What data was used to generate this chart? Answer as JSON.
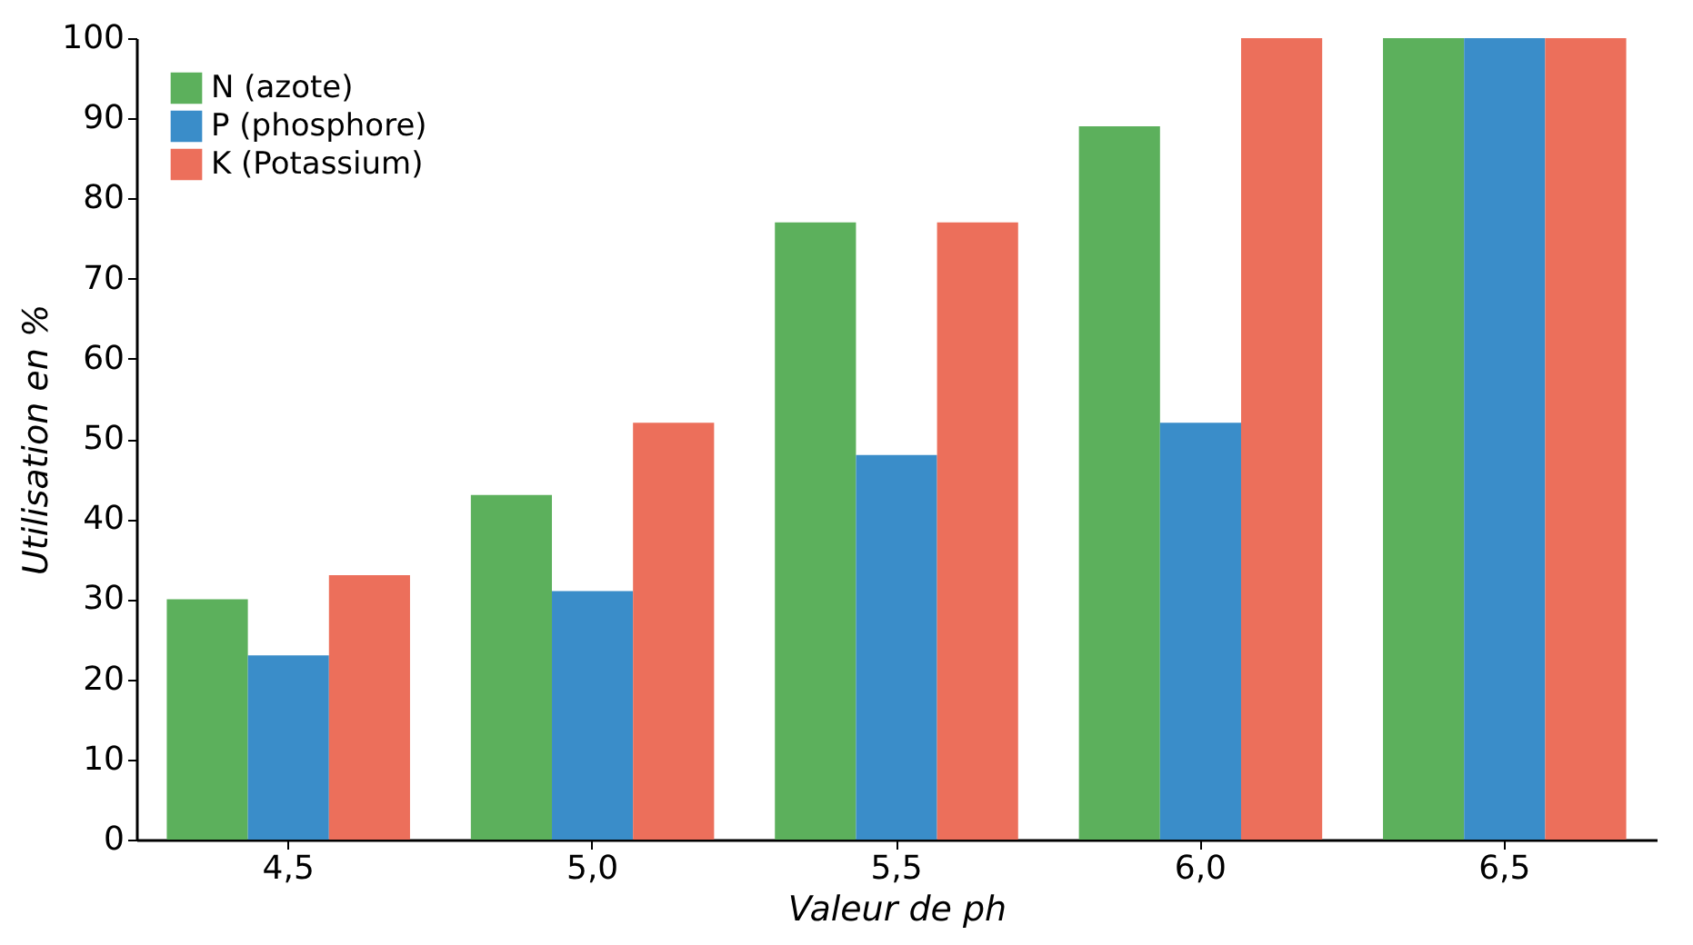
{
  "chart_data": {
    "type": "bar",
    "xlabel": "Valeur de ph",
    "ylabel": "Utilisation en %",
    "categories": [
      "4,5",
      "5,0",
      "5,5",
      "6,0",
      "6,5"
    ],
    "series": [
      {
        "name": "N (azote)",
        "color": "#5cb05c",
        "values": [
          30,
          43,
          77,
          89,
          100
        ]
      },
      {
        "name": "P (phosphore)",
        "color": "#3a8dc9",
        "values": [
          23,
          31,
          48,
          52,
          100
        ]
      },
      {
        "name": "K (Potassium)",
        "color": "#ec6f5b",
        "values": [
          33,
          52,
          77,
          100,
          100
        ]
      }
    ],
    "ylim": [
      0,
      100
    ],
    "yticks": [
      0,
      10,
      20,
      30,
      40,
      50,
      60,
      70,
      80,
      90,
      100
    ],
    "grid": false,
    "legend": "top left"
  }
}
